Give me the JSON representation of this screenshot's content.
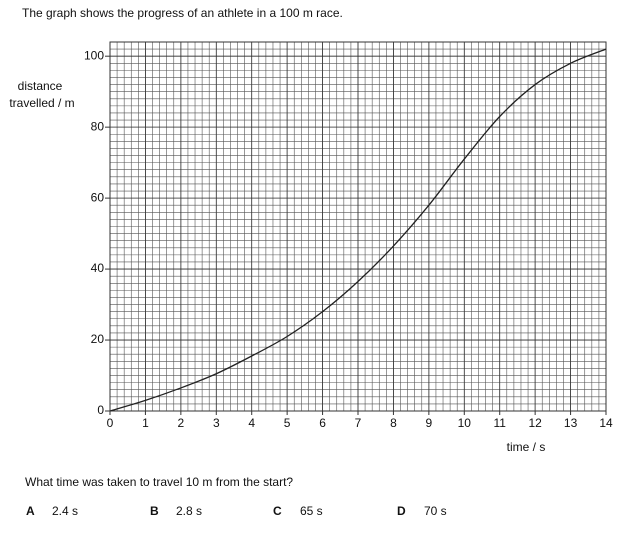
{
  "intro": "The graph shows the progress of an athlete in a 100 m race.",
  "chart_data": {
    "type": "line",
    "ylabel": [
      "distance",
      "travelled / m"
    ],
    "xlabel": "time / s",
    "x": [
      0,
      1,
      2,
      3,
      4,
      5,
      6,
      7,
      8,
      9,
      10,
      11,
      12,
      13,
      14
    ],
    "series": [
      {
        "color": "#222222",
        "values": [
          0,
          3,
          6.5,
          10.5,
          15.5,
          21,
          28,
          36.5,
          46.5,
          58,
          71,
          83,
          92,
          98,
          102
        ]
      }
    ],
    "xlim": [
      0,
      14
    ],
    "ylim": [
      0,
      104
    ],
    "xticks": [
      0,
      1,
      2,
      3,
      4,
      5,
      6,
      7,
      8,
      9,
      10,
      11,
      12,
      13,
      14
    ],
    "yticks": [
      0,
      20,
      40,
      60,
      80,
      100
    ],
    "grid": true
  },
  "question": "What time was taken to travel 10 m from the start?",
  "options": [
    {
      "letter": "A",
      "text": "2.4 s"
    },
    {
      "letter": "B",
      "text": "2.8 s"
    },
    {
      "letter": "C",
      "text": "65 s"
    },
    {
      "letter": "D",
      "text": "70 s"
    }
  ]
}
